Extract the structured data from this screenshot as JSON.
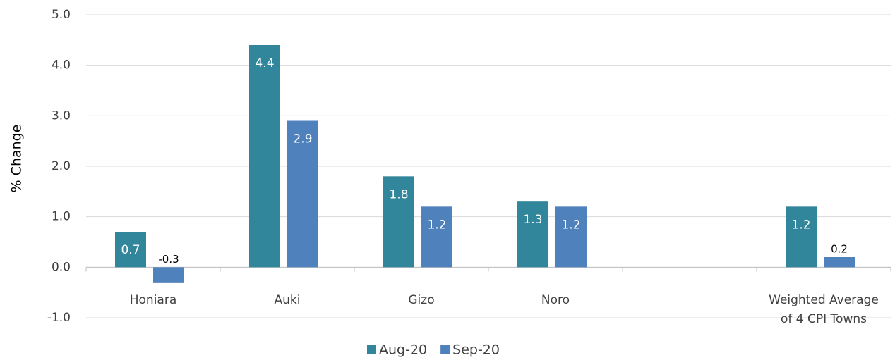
{
  "chart_data": {
    "type": "bar",
    "y_label": "% Change",
    "categories": [
      "Honiara",
      "Auki",
      "Gizo",
      "Noro",
      null,
      "Weighted Average of 4 CPI Towns"
    ],
    "series": [
      {
        "name": "Aug-20",
        "color": "#31869b",
        "values": [
          0.7,
          4.4,
          1.8,
          1.3,
          null,
          1.2
        ]
      },
      {
        "name": "Sep-20",
        "color": "#4f81bd",
        "values": [
          -0.3,
          2.9,
          1.2,
          1.2,
          null,
          0.2
        ]
      }
    ],
    "ylim": [
      -1,
      5
    ],
    "yticks": [
      {
        "value": -1,
        "label": "-1.0"
      },
      {
        "value": 0,
        "label": "0.0"
      },
      {
        "value": 1,
        "label": "1.0"
      },
      {
        "value": 2,
        "label": "2.0"
      },
      {
        "value": 3,
        "label": "3.0"
      },
      {
        "value": 4,
        "label": "4.0"
      },
      {
        "value": 5,
        "label": "5.0"
      }
    ],
    "grid": true,
    "legend": "bottom"
  }
}
